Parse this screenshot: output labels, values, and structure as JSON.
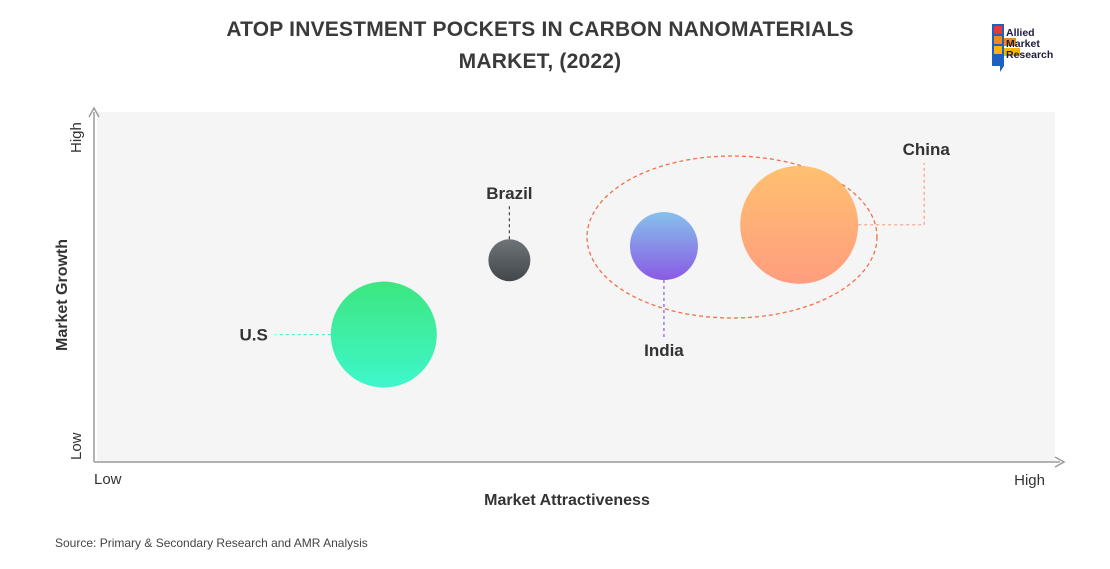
{
  "title_lines": [
    "ATOP INVESTMENT POCKETS IN CARBON NANOMATERIALS",
    "MARKET, (2022)"
  ],
  "logo": {
    "lines": [
      "Allied",
      "Market",
      "Research"
    ]
  },
  "source": "Source: Primary & Secondary Research and AMR Analysis",
  "chart_data": {
    "type": "scatter",
    "title": "ATOP INVESTMENT POCKETS IN CARBON NANOMATERIALS MARKET, (2022)",
    "xlabel": "Market Attractiveness",
    "ylabel": "Market Growth",
    "x_ticks": {
      "low": "Low",
      "high": "High"
    },
    "y_ticks": {
      "low": "Low",
      "high": "High"
    },
    "xlim": [
      0,
      100
    ],
    "ylim": [
      0,
      100
    ],
    "grid": false,
    "highlight": "China, India",
    "points": [
      {
        "label": "U.S",
        "x": 30,
        "y": 36,
        "size": 53,
        "color_top": "#3de67f",
        "color_bottom": "#3ef7cc"
      },
      {
        "label": "Brazil",
        "x": 43,
        "y": 57,
        "size": 21,
        "color_top": "#6f7479",
        "color_bottom": "#42474c"
      },
      {
        "label": "India",
        "x": 59,
        "y": 61,
        "size": 34,
        "color_top": "#86c1ec",
        "color_bottom": "#8a5ae4"
      },
      {
        "label": "China",
        "x": 73,
        "y": 67,
        "size": 59,
        "color_top": "#ffc06f",
        "color_bottom": "#ff9d7f"
      }
    ]
  }
}
